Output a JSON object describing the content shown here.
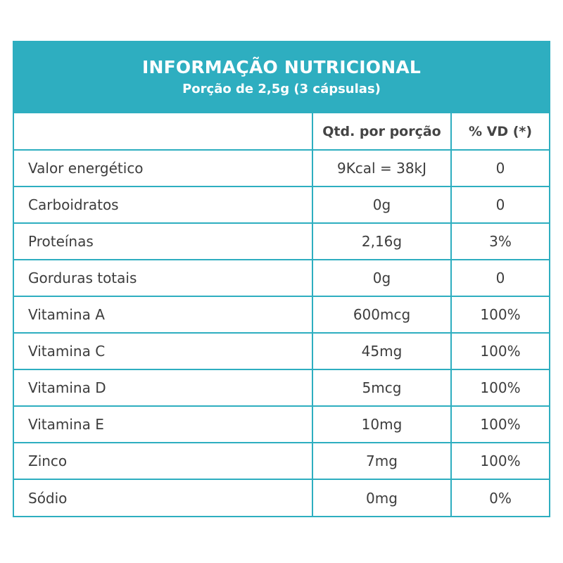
{
  "header": {
    "title": "INFORMAÇÃO NUTRICIONAL",
    "subtitle": "Porção de 2,5g (3 cápsulas)"
  },
  "columns": {
    "nutrient": "",
    "amount": "Qtd. por porção",
    "dv": "% VD (*)"
  },
  "rows": [
    {
      "nutrient": "Valor energético",
      "amount": "9Kcal = 38kJ",
      "dv": "0"
    },
    {
      "nutrient": "Carboidratos",
      "amount": "0g",
      "dv": "0"
    },
    {
      "nutrient": "Proteínas",
      "amount": "2,16g",
      "dv": "3%"
    },
    {
      "nutrient": "Gorduras totais",
      "amount": "0g",
      "dv": "0"
    },
    {
      "nutrient": "Vitamina A",
      "amount": "600mcg",
      "dv": "100%"
    },
    {
      "nutrient": "Vitamina C",
      "amount": "45mg",
      "dv": "100%"
    },
    {
      "nutrient": "Vitamina D",
      "amount": "5mcg",
      "dv": "100%"
    },
    {
      "nutrient": "Vitamina E",
      "amount": "10mg",
      "dv": "100%"
    },
    {
      "nutrient": "Zinco",
      "amount": "7mg",
      "dv": "100%"
    },
    {
      "nutrient": "Sódio",
      "amount": "0mg",
      "dv": "0%"
    }
  ],
  "colors": {
    "accent": "#2eaec0",
    "text": "#3d3d3d",
    "header_text": "#ffffff"
  }
}
